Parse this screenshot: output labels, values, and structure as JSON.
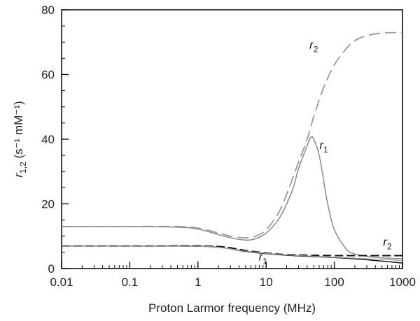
{
  "chart_data": {
    "type": "line",
    "xscale": "log",
    "xlim": [
      0.01,
      1000
    ],
    "ylim": [
      0,
      80
    ],
    "xlabel": "Proton Larmor frequency (MHz)",
    "ylabel": "r1,2 (s⁻¹ mM⁻¹)",
    "xticks": [
      "0.01",
      "0.1",
      "1",
      "10",
      "100",
      "1000"
    ],
    "yticks": [
      "0",
      "20",
      "40",
      "60",
      "80"
    ],
    "grid": false,
    "legend": "none",
    "colors": {
      "gray": "#9a9a9a",
      "black": "#111111"
    },
    "series": [
      {
        "style": "gray-dashed",
        "x": [
          0.01,
          0.1,
          0.5,
          1,
          2,
          3,
          5,
          7,
          10,
          15,
          20,
          30,
          40,
          50,
          70,
          100,
          150,
          200,
          300,
          500,
          1000
        ],
        "y": [
          13,
          13,
          13,
          12.5,
          11,
          10,
          9.5,
          10,
          12,
          17,
          23,
          33,
          40,
          47,
          56,
          63,
          68,
          70.5,
          72,
          72.8,
          73
        ]
      },
      {
        "style": "gray-solid",
        "x": [
          0.01,
          0.1,
          0.5,
          1,
          2,
          3,
          5,
          7,
          10,
          15,
          20,
          25,
          30,
          40,
          45,
          50,
          60,
          70,
          80,
          100,
          150,
          200,
          300,
          500,
          1000
        ],
        "y": [
          13,
          13,
          12.8,
          12.2,
          10.5,
          9.5,
          8.8,
          9.2,
          11,
          15,
          20,
          25,
          31,
          38,
          40.5,
          40,
          35,
          27,
          20,
          12,
          6,
          4.5,
          3.8,
          3.3,
          3
        ]
      },
      {
        "style": "black-dashed",
        "x": [
          0.01,
          0.1,
          1,
          2,
          3,
          5,
          10,
          20,
          50,
          100,
          200,
          500,
          1000
        ],
        "y": [
          7,
          7,
          7,
          6.8,
          6.4,
          5.6,
          4.8,
          4.3,
          4.1,
          4.0,
          4.0,
          4.0,
          4.0
        ]
      },
      {
        "style": "black-solid",
        "x": [
          0.01,
          0.1,
          1,
          2,
          3,
          5,
          10,
          20,
          50,
          100,
          200,
          500,
          1000
        ],
        "y": [
          7,
          7,
          6.9,
          6.6,
          6.1,
          5.3,
          4.6,
          4.1,
          3.7,
          3.4,
          3.0,
          2.3,
          1.7
        ]
      },
      {
        "style": "gray-thin",
        "x": [
          0.01,
          0.1,
          1,
          2,
          5,
          10,
          20,
          50,
          100,
          200,
          500,
          1000
        ],
        "y": [
          7,
          7,
          6.9,
          6.6,
          5.4,
          4.7,
          4.2,
          3.8,
          3.5,
          3.2,
          2.8,
          2.5
        ]
      }
    ],
    "annotations": [
      {
        "text": "r",
        "sub": "2",
        "x": 50,
        "y": 68
      },
      {
        "text": "r",
        "sub": "1",
        "x": 70,
        "y": 37
      },
      {
        "text": "r",
        "sub": "2",
        "x": 600,
        "y": 7
      },
      {
        "text": "r",
        "sub": "1",
        "x": 9,
        "y": 2.5
      }
    ]
  }
}
